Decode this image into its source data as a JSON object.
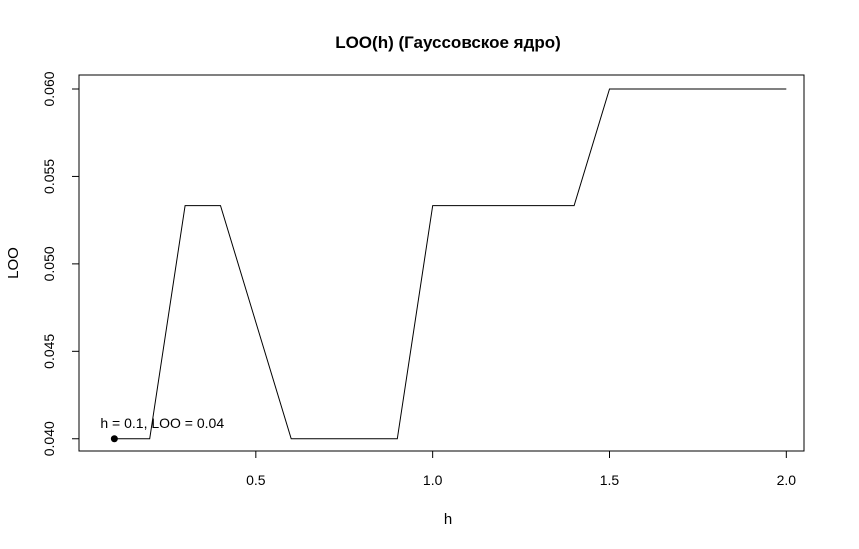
{
  "chart_data": {
    "type": "line",
    "title": "LOO(h) (Гауссовское ядро)",
    "xlabel": "h",
    "ylabel": "LOO",
    "xlim": [
      0.0,
      2.05
    ],
    "ylim": [
      0.0393,
      0.0608
    ],
    "xticks": [
      0.5,
      1.0,
      1.5,
      2.0
    ],
    "xtick_labels": [
      "0.5",
      "1.0",
      "1.5",
      "2.0"
    ],
    "yticks": [
      0.04,
      0.045,
      0.05,
      0.055,
      0.06
    ],
    "ytick_labels": [
      "0.040",
      "0.045",
      "0.050",
      "0.055",
      "0.060"
    ],
    "grid": false,
    "series": [
      {
        "x": [
          0.1,
          0.2,
          0.3,
          0.4,
          0.5,
          0.6,
          0.7,
          0.8,
          0.9,
          1.0,
          1.1,
          1.2,
          1.3,
          1.4,
          1.5,
          1.6,
          1.7,
          1.8,
          1.9,
          2.0
        ],
        "y": [
          0.04,
          0.04,
          0.05333,
          0.05333,
          0.04667,
          0.04,
          0.04,
          0.04,
          0.04,
          0.05333,
          0.05333,
          0.05333,
          0.05333,
          0.05333,
          0.06,
          0.06,
          0.06,
          0.06,
          0.06,
          0.06
        ]
      }
    ],
    "highlight_point": {
      "x": 0.1,
      "y": 0.04
    },
    "annotation": "h = 0.1, LOO = 0.04",
    "colors": {
      "line": "#000000",
      "point": "#000000",
      "axis": "#000000"
    }
  }
}
